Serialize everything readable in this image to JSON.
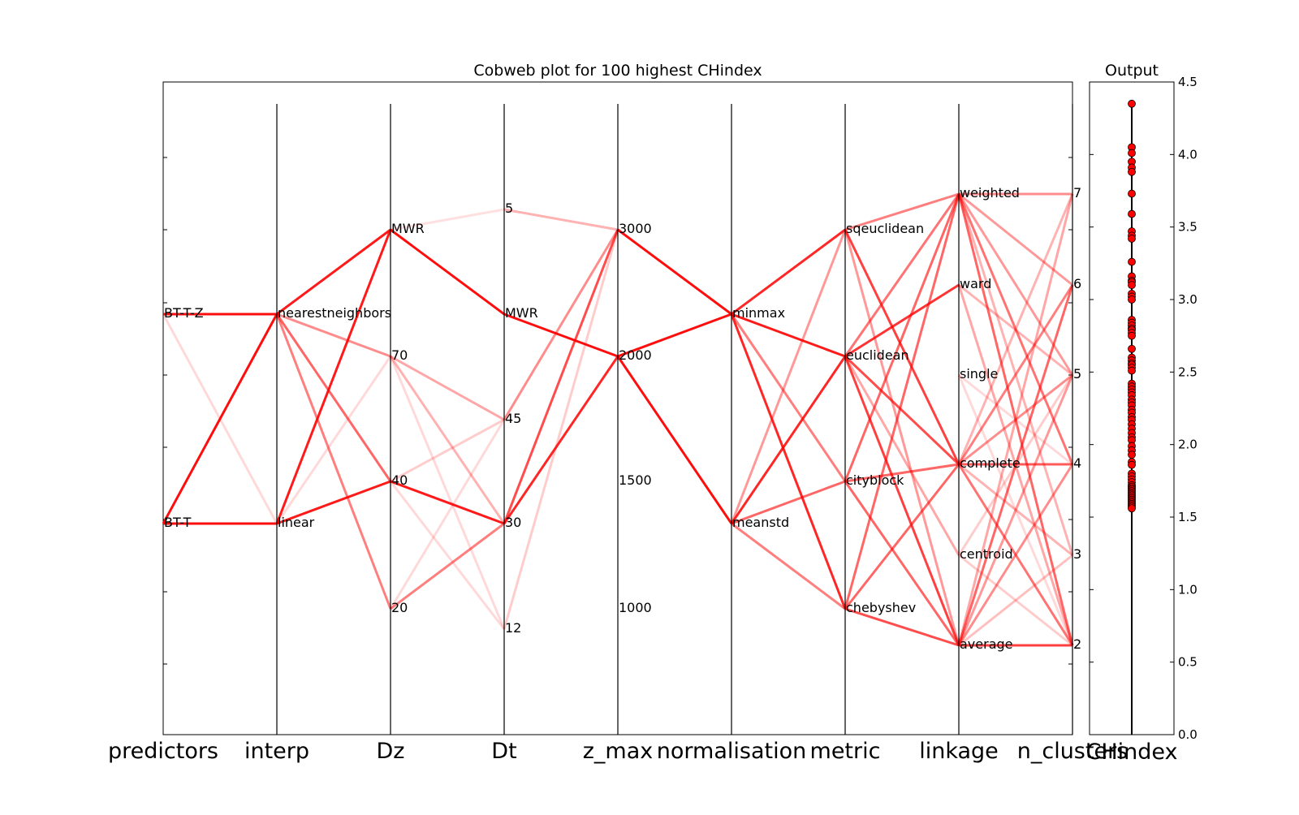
{
  "chart_data": [
    {
      "type": "parallel-coordinates",
      "title": "Cobweb plot for 100 highest CHindex",
      "axes": [
        {
          "name": "predictors",
          "levels": [
            "BT-T",
            "BT-T-Z"
          ]
        },
        {
          "name": "interp",
          "levels": [
            "linear",
            "nearestneighbors"
          ]
        },
        {
          "name": "Dz",
          "levels": [
            "20",
            "40",
            "70",
            "MWR"
          ]
        },
        {
          "name": "Dt",
          "levels": [
            "12",
            "30",
            "45",
            "MWR",
            "5"
          ]
        },
        {
          "name": "z_max",
          "levels": [
            "1000",
            "1500",
            "2000",
            "3000"
          ]
        },
        {
          "name": "normalisation",
          "levels": [
            "meanstd",
            "minmax"
          ]
        },
        {
          "name": "metric",
          "levels": [
            "chebyshev",
            "cityblock",
            "euclidean",
            "sqeuclidean"
          ]
        },
        {
          "name": "linkage",
          "levels": [
            "average",
            "centroid",
            "complete",
            "single",
            "ward",
            "weighted"
          ]
        },
        {
          "name": "n_clusters",
          "levels": [
            "2",
            "3",
            "4",
            "5",
            "6",
            "7"
          ]
        }
      ],
      "line_color": "#ff0000",
      "segments": [
        {
          "axis": 0,
          "from": "BT-T-Z",
          "to": "nearestneighbors",
          "opacity": 0.95
        },
        {
          "axis": 0,
          "from": "BT-T-Z",
          "to": "linear",
          "opacity": 0.15
        },
        {
          "axis": 0,
          "from": "BT-T",
          "to": "nearestneighbors",
          "opacity": 0.95
        },
        {
          "axis": 0,
          "from": "BT-T",
          "to": "linear",
          "opacity": 0.95
        },
        {
          "axis": 1,
          "from": "nearestneighbors",
          "to": "MWR",
          "opacity": 0.9
        },
        {
          "axis": 1,
          "from": "nearestneighbors",
          "to": "70",
          "opacity": 0.45
        },
        {
          "axis": 1,
          "from": "nearestneighbors",
          "to": "40",
          "opacity": 0.6
        },
        {
          "axis": 1,
          "from": "nearestneighbors",
          "to": "20",
          "opacity": 0.5
        },
        {
          "axis": 1,
          "from": "linear",
          "to": "MWR",
          "opacity": 0.9
        },
        {
          "axis": 1,
          "from": "linear",
          "to": "40",
          "opacity": 0.9
        },
        {
          "axis": 1,
          "from": "linear",
          "to": "70",
          "opacity": 0.15
        },
        {
          "axis": 2,
          "from": "MWR",
          "to": "MWR",
          "opacity": 0.95
        },
        {
          "axis": 2,
          "from": "MWR",
          "to": "5",
          "opacity": 0.12
        },
        {
          "axis": 2,
          "from": "70",
          "to": "45",
          "opacity": 0.35
        },
        {
          "axis": 2,
          "from": "70",
          "to": "30",
          "opacity": 0.3
        },
        {
          "axis": 2,
          "from": "70",
          "to": "12",
          "opacity": 0.15
        },
        {
          "axis": 2,
          "from": "40",
          "to": "30",
          "opacity": 0.9
        },
        {
          "axis": 2,
          "from": "40",
          "to": "45",
          "opacity": 0.2
        },
        {
          "axis": 2,
          "from": "40",
          "to": "12",
          "opacity": 0.15
        },
        {
          "axis": 2,
          "from": "20",
          "to": "30",
          "opacity": 0.5
        },
        {
          "axis": 2,
          "from": "20",
          "to": "45",
          "opacity": 0.15
        },
        {
          "axis": 3,
          "from": "5",
          "to": "3000",
          "opacity": 0.3
        },
        {
          "axis": 3,
          "from": "MWR",
          "to": "2000",
          "opacity": 0.95
        },
        {
          "axis": 3,
          "from": "45",
          "to": "3000",
          "opacity": 0.45
        },
        {
          "axis": 3,
          "from": "30",
          "to": "3000",
          "opacity": 0.7
        },
        {
          "axis": 3,
          "from": "30",
          "to": "2000",
          "opacity": 0.85
        },
        {
          "axis": 3,
          "from": "12",
          "to": "3000",
          "opacity": 0.2
        },
        {
          "axis": 4,
          "from": "3000",
          "to": "minmax",
          "opacity": 0.95
        },
        {
          "axis": 4,
          "from": "2000",
          "to": "minmax",
          "opacity": 0.95
        },
        {
          "axis": 4,
          "from": "2000",
          "to": "meanstd",
          "opacity": 0.95
        },
        {
          "axis": 5,
          "from": "minmax",
          "to": "sqeuclidean",
          "opacity": 0.85
        },
        {
          "axis": 5,
          "from": "minmax",
          "to": "euclidean",
          "opacity": 0.9
        },
        {
          "axis": 5,
          "from": "minmax",
          "to": "chebyshev",
          "opacity": 0.85
        },
        {
          "axis": 5,
          "from": "minmax",
          "to": "cityblock",
          "opacity": 0.5
        },
        {
          "axis": 5,
          "from": "meanstd",
          "to": "sqeuclidean",
          "opacity": 0.4
        },
        {
          "axis": 5,
          "from": "meanstd",
          "to": "euclidean",
          "opacity": 0.85
        },
        {
          "axis": 5,
          "from": "meanstd",
          "to": "cityblock",
          "opacity": 0.6
        },
        {
          "axis": 5,
          "from": "meanstd",
          "to": "chebyshev",
          "opacity": 0.5
        },
        {
          "axis": 6,
          "from": "sqeuclidean",
          "to": "weighted",
          "opacity": 0.5
        },
        {
          "axis": 6,
          "from": "sqeuclidean",
          "to": "complete",
          "opacity": 0.75
        },
        {
          "axis": 6,
          "from": "sqeuclidean",
          "to": "average",
          "opacity": 0.4
        },
        {
          "axis": 6,
          "from": "euclidean",
          "to": "weighted",
          "opacity": 0.55
        },
        {
          "axis": 6,
          "from": "euclidean",
          "to": "ward",
          "opacity": 0.8
        },
        {
          "axis": 6,
          "from": "euclidean",
          "to": "complete",
          "opacity": 0.7
        },
        {
          "axis": 6,
          "from": "euclidean",
          "to": "centroid",
          "opacity": 0.35
        },
        {
          "axis": 6,
          "from": "euclidean",
          "to": "average",
          "opacity": 0.75
        },
        {
          "axis": 6,
          "from": "cityblock",
          "to": "weighted",
          "opacity": 0.6
        },
        {
          "axis": 6,
          "from": "cityblock",
          "to": "complete",
          "opacity": 0.6
        },
        {
          "axis": 6,
          "from": "cityblock",
          "to": "average",
          "opacity": 0.6
        },
        {
          "axis": 6,
          "from": "chebyshev",
          "to": "weighted",
          "opacity": 0.6
        },
        {
          "axis": 6,
          "from": "chebyshev",
          "to": "complete",
          "opacity": 0.6
        },
        {
          "axis": 6,
          "from": "chebyshev",
          "to": "average",
          "opacity": 0.7
        },
        {
          "axis": 7,
          "from": "weighted",
          "to": "7",
          "opacity": 0.45
        },
        {
          "axis": 7,
          "from": "weighted",
          "to": "6",
          "opacity": 0.4
        },
        {
          "axis": 7,
          "from": "weighted",
          "to": "5",
          "opacity": 0.4
        },
        {
          "axis": 7,
          "from": "weighted",
          "to": "4",
          "opacity": 0.55
        },
        {
          "axis": 7,
          "from": "weighted",
          "to": "3",
          "opacity": 0.3
        },
        {
          "axis": 7,
          "from": "weighted",
          "to": "2",
          "opacity": 0.6
        },
        {
          "axis": 7,
          "from": "ward",
          "to": "5",
          "opacity": 0.3
        },
        {
          "axis": 7,
          "from": "ward",
          "to": "2",
          "opacity": 0.35
        },
        {
          "axis": 7,
          "from": "single",
          "to": "4",
          "opacity": 0.15
        },
        {
          "axis": 7,
          "from": "single",
          "to": "2",
          "opacity": 0.15
        },
        {
          "axis": 7,
          "from": "complete",
          "to": "7",
          "opacity": 0.3
        },
        {
          "axis": 7,
          "from": "complete",
          "to": "6",
          "opacity": 0.5
        },
        {
          "axis": 7,
          "from": "complete",
          "to": "5",
          "opacity": 0.45
        },
        {
          "axis": 7,
          "from": "complete",
          "to": "4",
          "opacity": 0.65
        },
        {
          "axis": 7,
          "from": "complete",
          "to": "3",
          "opacity": 0.3
        },
        {
          "axis": 7,
          "from": "complete",
          "to": "2",
          "opacity": 0.55
        },
        {
          "axis": 7,
          "from": "centroid",
          "to": "5",
          "opacity": 0.2
        },
        {
          "axis": 7,
          "from": "centroid",
          "to": "2",
          "opacity": 0.2
        },
        {
          "axis": 7,
          "from": "average",
          "to": "7",
          "opacity": 0.35
        },
        {
          "axis": 7,
          "from": "average",
          "to": "6",
          "opacity": 0.6
        },
        {
          "axis": 7,
          "from": "average",
          "to": "5",
          "opacity": 0.4
        },
        {
          "axis": 7,
          "from": "average",
          "to": "4",
          "opacity": 0.45
        },
        {
          "axis": 7,
          "from": "average",
          "to": "3",
          "opacity": 0.25
        },
        {
          "axis": 7,
          "from": "average",
          "to": "2",
          "opacity": 0.75
        }
      ]
    },
    {
      "type": "scatter",
      "title": "Output",
      "xlabel": "CHindex",
      "ylim": [
        0.0,
        4.5
      ],
      "yticks": [
        "0.0",
        "0.5",
        "1.0",
        "1.5",
        "2.0",
        "2.5",
        "3.0",
        "3.5",
        "4.0",
        "4.5"
      ],
      "marker_color": "#ff0000",
      "values": [
        4.35,
        4.05,
        4.01,
        3.95,
        3.91,
        3.88,
        3.73,
        3.59,
        3.47,
        3.44,
        3.42,
        3.26,
        3.16,
        3.13,
        3.12,
        3.1,
        3.04,
        3.02,
        3.0,
        2.86,
        2.84,
        2.82,
        2.8,
        2.79,
        2.77,
        2.75,
        2.66,
        2.6,
        2.58,
        2.56,
        2.55,
        2.53,
        2.51,
        2.42,
        2.4,
        2.38,
        2.36,
        2.34,
        2.31,
        2.29,
        2.27,
        2.24,
        2.22,
        2.19,
        2.17,
        2.14,
        2.11,
        2.08,
        2.05,
        2.03,
        1.99,
        1.96,
        1.93,
        1.88,
        1.86,
        1.8,
        1.78,
        1.76,
        1.74,
        1.72,
        1.71,
        1.7,
        1.69,
        1.68,
        1.67,
        1.66,
        1.65,
        1.64,
        1.63,
        1.62,
        1.61,
        1.6,
        1.59,
        1.58,
        1.57,
        1.56
      ]
    }
  ]
}
